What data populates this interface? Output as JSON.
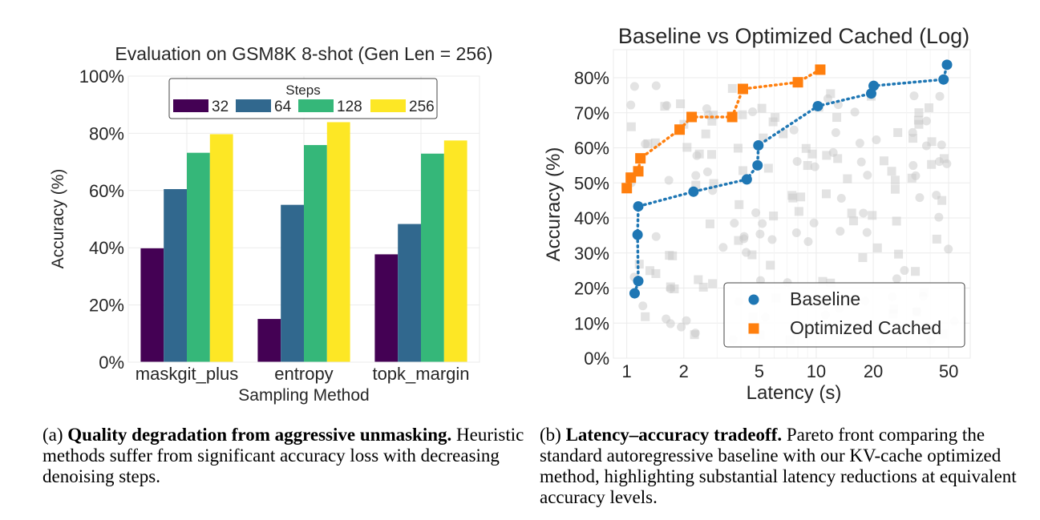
{
  "chart_data": [
    {
      "type": "bar",
      "title": "Evaluation on GSM8K 8-shot (Gen Len = 256)",
      "xlabel": "Sampling Method",
      "ylabel": "Accuracy (%)",
      "ylim": [
        0,
        100
      ],
      "y_ticks": [
        "0%",
        "20%",
        "40%",
        "60%",
        "80%",
        "100%"
      ],
      "categories": [
        "maskgit_plus",
        "entropy",
        "topk_margin"
      ],
      "legend_title": "Steps",
      "legend_position": "top-center",
      "grid": true,
      "series": [
        {
          "name": "32",
          "color": "#440154",
          "values": [
            39.8,
            15.1,
            37.7
          ]
        },
        {
          "name": "64",
          "color": "#31688e",
          "values": [
            60.5,
            55.0,
            48.3
          ]
        },
        {
          "name": "128",
          "color": "#35b779",
          "values": [
            73.2,
            75.9,
            72.9
          ]
        },
        {
          "name": "256",
          "color": "#fde725",
          "values": [
            79.7,
            83.9,
            77.5
          ]
        }
      ]
    },
    {
      "type": "scatter",
      "title": "Baseline vs Optimized Cached (Log)",
      "xlabel": "Latency (s)",
      "ylabel": "Accuracy (%)",
      "x_scale": "log",
      "xlim": [
        0.85,
        65
      ],
      "ylim": [
        0,
        88
      ],
      "x_ticks": [
        1,
        2,
        5,
        10,
        20,
        50
      ],
      "y_ticks": [
        "0%",
        "10%",
        "20%",
        "30%",
        "40%",
        "50%",
        "60%",
        "70%",
        "80%"
      ],
      "legend_position": "bottom-right",
      "grid": true,
      "series": [
        {
          "name": "Baseline",
          "color": "#1f77b4",
          "marker": "circle",
          "line": "dotted",
          "points": [
            [
              1.1,
              18.5
            ],
            [
              1.15,
              22.0
            ],
            [
              1.14,
              35.2
            ],
            [
              1.15,
              43.3
            ],
            [
              2.25,
              47.5
            ],
            [
              4.3,
              51.0
            ],
            [
              4.9,
              55.0
            ],
            [
              4.95,
              60.7
            ],
            [
              10.2,
              71.9
            ],
            [
              19.5,
              75.5
            ],
            [
              20.1,
              77.7
            ],
            [
              47.0,
              79.5
            ],
            [
              49.0,
              83.7
            ]
          ]
        },
        {
          "name": "Optimized Cached",
          "color": "#ff7f0e",
          "marker": "square",
          "line": "dotted",
          "points": [
            [
              1.0,
              48.5
            ],
            [
              1.05,
              51.5
            ],
            [
              1.15,
              53.3
            ],
            [
              1.18,
              57.0
            ],
            [
              1.9,
              65.2
            ],
            [
              2.2,
              68.8
            ],
            [
              3.6,
              68.8
            ],
            [
              4.1,
              76.8
            ],
            [
              8.0,
              78.7
            ],
            [
              10.5,
              82.3
            ]
          ]
        }
      ]
    }
  ],
  "captions": {
    "a": {
      "label": "(a)",
      "bold": "Quality degradation from aggressive unmasking.",
      "rest": "Heuristic methods suffer from significant accuracy loss with decreasing denoising steps."
    },
    "b": {
      "label": "(b)",
      "bold": "Latency–accuracy tradeoff.",
      "rest": "Pareto front comparing the standard autoregressive baseline with our KV-cache optimized method, highlighting substantial latency reductions at equivalent accuracy levels."
    }
  }
}
